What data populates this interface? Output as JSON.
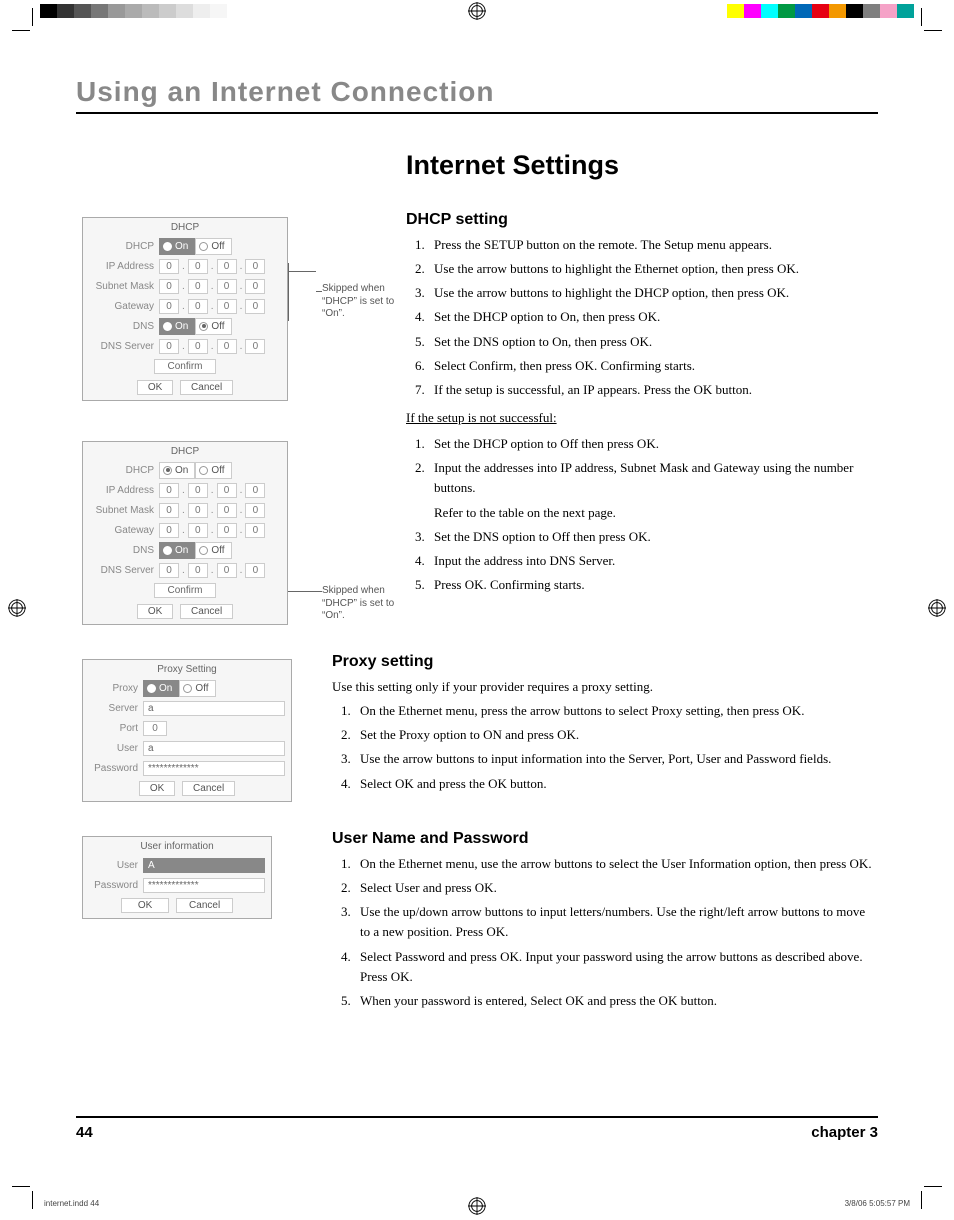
{
  "print": {
    "left_swatches": [
      "#000000",
      "#333333",
      "#555555",
      "#777777",
      "#999999",
      "#aaaaaa",
      "#bbbbbb",
      "#cccccc",
      "#dddddd",
      "#eeeeee",
      "#f6f6f6",
      "#ffffff"
    ],
    "right_swatches": [
      "#ffffff",
      "#ffff00",
      "#ff00ff",
      "#00ffff",
      "#009944",
      "#0068b7",
      "#e60012",
      "#f39800",
      "#000000",
      "#7f7f7f",
      "#f5a2c7",
      "#00a29a"
    ]
  },
  "chapter_title": "Using an Internet Connection",
  "main_title": "Internet Settings",
  "dhcp_panel": {
    "title": "DHCP",
    "labels": {
      "dhcp": "DHCP",
      "ip": "IP Address",
      "subnet": "Subnet Mask",
      "gateway": "Gateway",
      "dns": "DNS",
      "dns_server": "DNS Server"
    },
    "on": "On",
    "off": "Off",
    "ip_vals": [
      "0",
      "0",
      "0",
      "0"
    ],
    "confirm": "Confirm",
    "ok": "OK",
    "cancel": "Cancel"
  },
  "callout1": "Skipped when “DHCP” is set to “On”.",
  "callout2": "Skipped when “DHCP” is set to “On”.",
  "dhcp_section": {
    "heading": "DHCP setting",
    "steps": [
      "Press the SETUP button on the remote. The Setup menu appears.",
      "Use the arrow buttons to highlight the Ethernet option, then press OK.",
      "Use the arrow buttons to highlight the DHCP option, then press OK.",
      "Set the DHCP option to On, then press OK.",
      "Set the DNS option to On, then press OK.",
      "Select Confirm, then press OK. Confirming starts.",
      "If the setup is successful, an IP appears. Press the OK button."
    ],
    "fail_heading": "If the setup is not successful:",
    "fail_steps": [
      "Set the DHCP option to Off then press OK.",
      "Input the addresses into IP address, Subnet Mask and Gateway using the number buttons.",
      "Refer to the table on the next page.",
      "Set the DNS option to Off then press OK.",
      "Input the address into DNS Server.",
      "Press OK. Confirming starts."
    ]
  },
  "proxy_panel": {
    "title": "Proxy Setting",
    "labels": {
      "proxy": "Proxy",
      "server": "Server",
      "port": "Port",
      "user": "User",
      "password": "Password"
    },
    "on": "On",
    "off": "Off",
    "server_val": "a",
    "port_val": "0",
    "user_val": "a",
    "password_val": "*************",
    "ok": "OK",
    "cancel": "Cancel"
  },
  "proxy_section": {
    "heading": "Proxy setting",
    "intro": "Use this setting only if your provider requires a proxy setting.",
    "steps": [
      "On the Ethernet menu, press the arrow buttons to select Proxy setting, then press OK.",
      "Set the Proxy option to ON and press OK.",
      "Use the arrow buttons to input information into the Server, Port, User and Password fields.",
      "Select OK and press the OK button."
    ]
  },
  "user_panel": {
    "title": "User information",
    "labels": {
      "user": "User",
      "password": "Password"
    },
    "user_val": "A",
    "password_val": "*************",
    "ok": "OK",
    "cancel": "Cancel"
  },
  "user_section": {
    "heading": "User Name and Password",
    "steps": [
      "On the Ethernet menu, use the arrow buttons to select the User Information option, then press OK.",
      "Select User and press OK.",
      "Use the up/down arrow buttons to input letters/numbers. Use the right/left arrow buttons to move to a new position. Press OK.",
      "Select Password and press OK. Input your password using the arrow buttons as described above. Press OK.",
      "When your password is entered, Select OK and press the OK button."
    ]
  },
  "footer": {
    "page": "44",
    "chapter": "chapter 3"
  },
  "slug": {
    "file": "internet.indd   44",
    "date": "3/8/06   5:05:57 PM"
  }
}
